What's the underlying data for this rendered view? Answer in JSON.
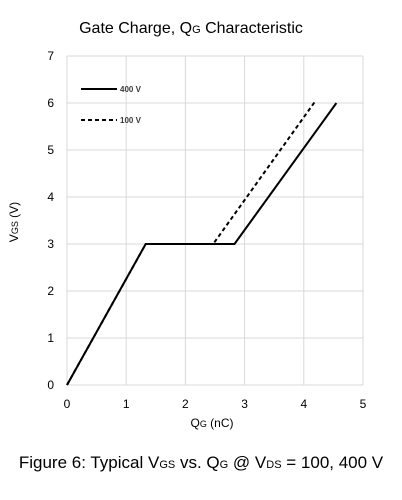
{
  "chart_data": {
    "type": "line",
    "title": "Gate Charge, Q",
    "title_sub": "G",
    "title_rest": " Characteristic",
    "xlabel": "Q",
    "xlabel_sub": "G",
    "xlabel_rest": " (nC)",
    "ylabel": "V",
    "ylabel_sub": "GS",
    "ylabel_rest": " (V)",
    "xlim": [
      0,
      5
    ],
    "ylim": [
      0,
      7
    ],
    "x_ticks": [
      "0",
      "1",
      "2",
      "3",
      "4",
      "5"
    ],
    "y_ticks": [
      "0",
      "1",
      "2",
      "3",
      "4",
      "5",
      "6",
      "7"
    ],
    "grid": true,
    "legend_position": "top-left",
    "series": [
      {
        "name": "400 V",
        "style": "solid",
        "color": "#000000",
        "points": [
          [
            0,
            0
          ],
          [
            1.33,
            3
          ],
          [
            2.83,
            3
          ],
          [
            4.55,
            6
          ]
        ]
      },
      {
        "name": "100 V",
        "style": "dashed",
        "color": "#000000",
        "points": [
          [
            0,
            0
          ],
          [
            1.33,
            3
          ],
          [
            2.47,
            3
          ],
          [
            4.2,
            6.05
          ]
        ]
      }
    ]
  },
  "caption": {
    "p1": "Figure 6: Typical V",
    "s1": "GS",
    "p2": " vs. Q",
    "s2": "G",
    "p3": " @ V",
    "s3": "DS",
    "p4": " = 100, 400 V"
  }
}
